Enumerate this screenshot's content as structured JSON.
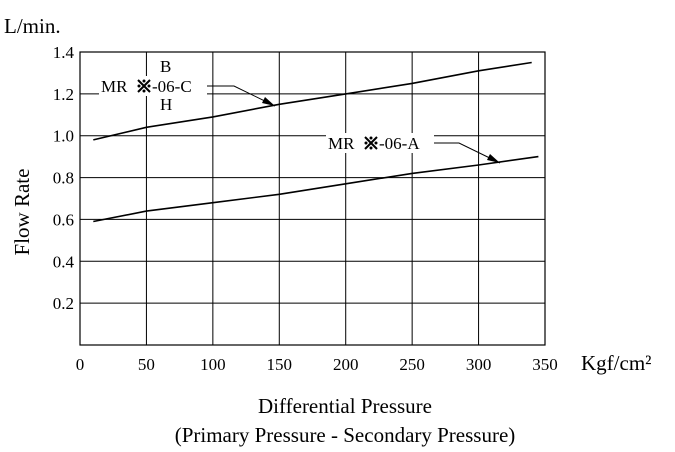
{
  "chart_data": {
    "type": "line",
    "title": "",
    "ylabel": "Flow Rate",
    "y_unit": "L/min.",
    "xlabel_line1": "Differential  Pressure",
    "xlabel_line2": "(Primary Pressure - Secondary Pressure)",
    "x_unit": "Kgf/cm²",
    "xlim": [
      0,
      350
    ],
    "ylim": [
      0,
      1.4
    ],
    "x_ticks": [
      "0",
      "50",
      "100",
      "150",
      "200",
      "250",
      "300",
      "350"
    ],
    "y_ticks": [
      "0.2",
      "0.4",
      "0.6",
      "0.8",
      "1.0",
      "1.2",
      "1.4"
    ],
    "grid": true,
    "legend": "none",
    "series": [
      {
        "name": "MR※-06-C",
        "x": [
          10,
          50,
          100,
          150,
          200,
          250,
          300,
          340
        ],
        "y": [
          0.98,
          1.04,
          1.09,
          1.15,
          1.2,
          1.25,
          1.31,
          1.35
        ]
      },
      {
        "name": "MR※-06-A",
        "x": [
          10,
          50,
          100,
          150,
          200,
          250,
          300,
          345
        ],
        "y": [
          0.59,
          0.64,
          0.68,
          0.72,
          0.77,
          0.82,
          0.86,
          0.9
        ]
      }
    ],
    "annotations": {
      "c_prefix": "MR",
      "c_suffix": "-06-C",
      "c_upper": "B",
      "c_lower": "H",
      "a_prefix": "MR",
      "a_suffix": "-06-A",
      "symbol": "※"
    }
  }
}
